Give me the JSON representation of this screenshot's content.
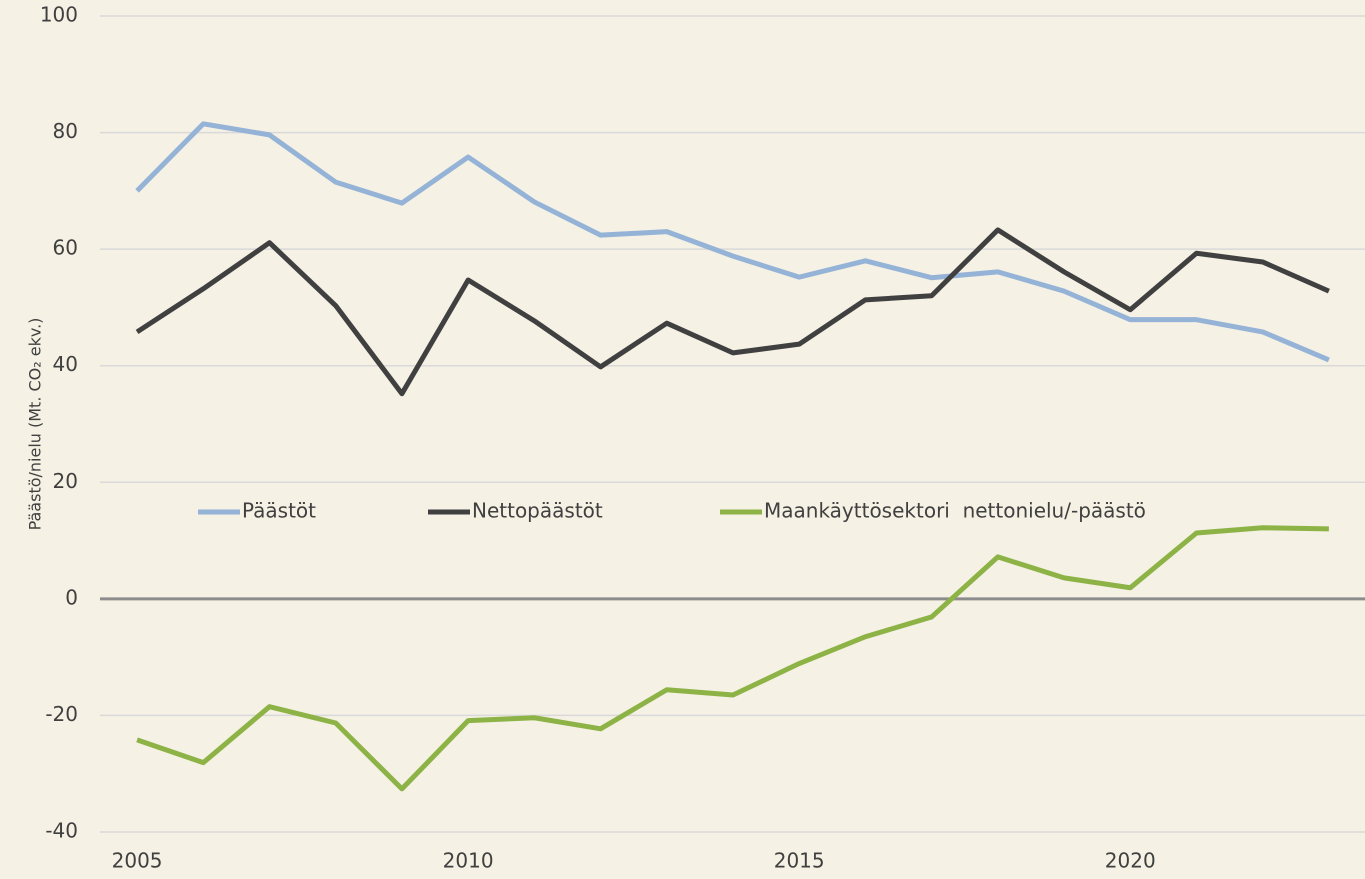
{
  "chart_data": {
    "type": "line",
    "ylabel": "Päästö/nielu (Mt. CO₂ ekv.)",
    "x": [
      2005,
      2006,
      2007,
      2008,
      2009,
      2010,
      2011,
      2012,
      2013,
      2014,
      2015,
      2016,
      2017,
      2018,
      2019,
      2020,
      2021,
      2022,
      2023
    ],
    "series": [
      {
        "name": "Päästöt",
        "color": "#95b3d7",
        "values": [
          70.0,
          81.5,
          79.6,
          71.5,
          67.9,
          75.8,
          68.1,
          62.4,
          63.0,
          58.8,
          55.2,
          58.0,
          55.1,
          56.1,
          52.8,
          47.9,
          47.9,
          45.8,
          41.0
        ]
      },
      {
        "name": "Nettopäästöt",
        "color": "#404040",
        "values": [
          45.8,
          53.2,
          61.1,
          50.3,
          35.2,
          54.7,
          47.7,
          39.8,
          47.3,
          42.2,
          43.7,
          51.3,
          52.0,
          63.3,
          56.1,
          49.6,
          59.3,
          57.8,
          52.8
        ]
      },
      {
        "name": "Maankäyttösektori  nettonielu/-päästö",
        "color": "#8db347",
        "values": [
          -24.2,
          -28.1,
          -18.5,
          -21.3,
          -32.6,
          -20.9,
          -20.4,
          -22.3,
          -15.6,
          -16.5,
          -11.1,
          -6.5,
          -3.1,
          7.2,
          3.6,
          1.9,
          11.3,
          12.2,
          12.0
        ]
      }
    ],
    "xlim": [
      2004.44,
      2023.5
    ],
    "xticks": [
      2005,
      2010,
      2015,
      2020
    ],
    "ylim": [
      -40,
      100
    ],
    "yticks": [
      -40,
      -20,
      0,
      20,
      40,
      60,
      80,
      100
    ],
    "grid": true
  }
}
